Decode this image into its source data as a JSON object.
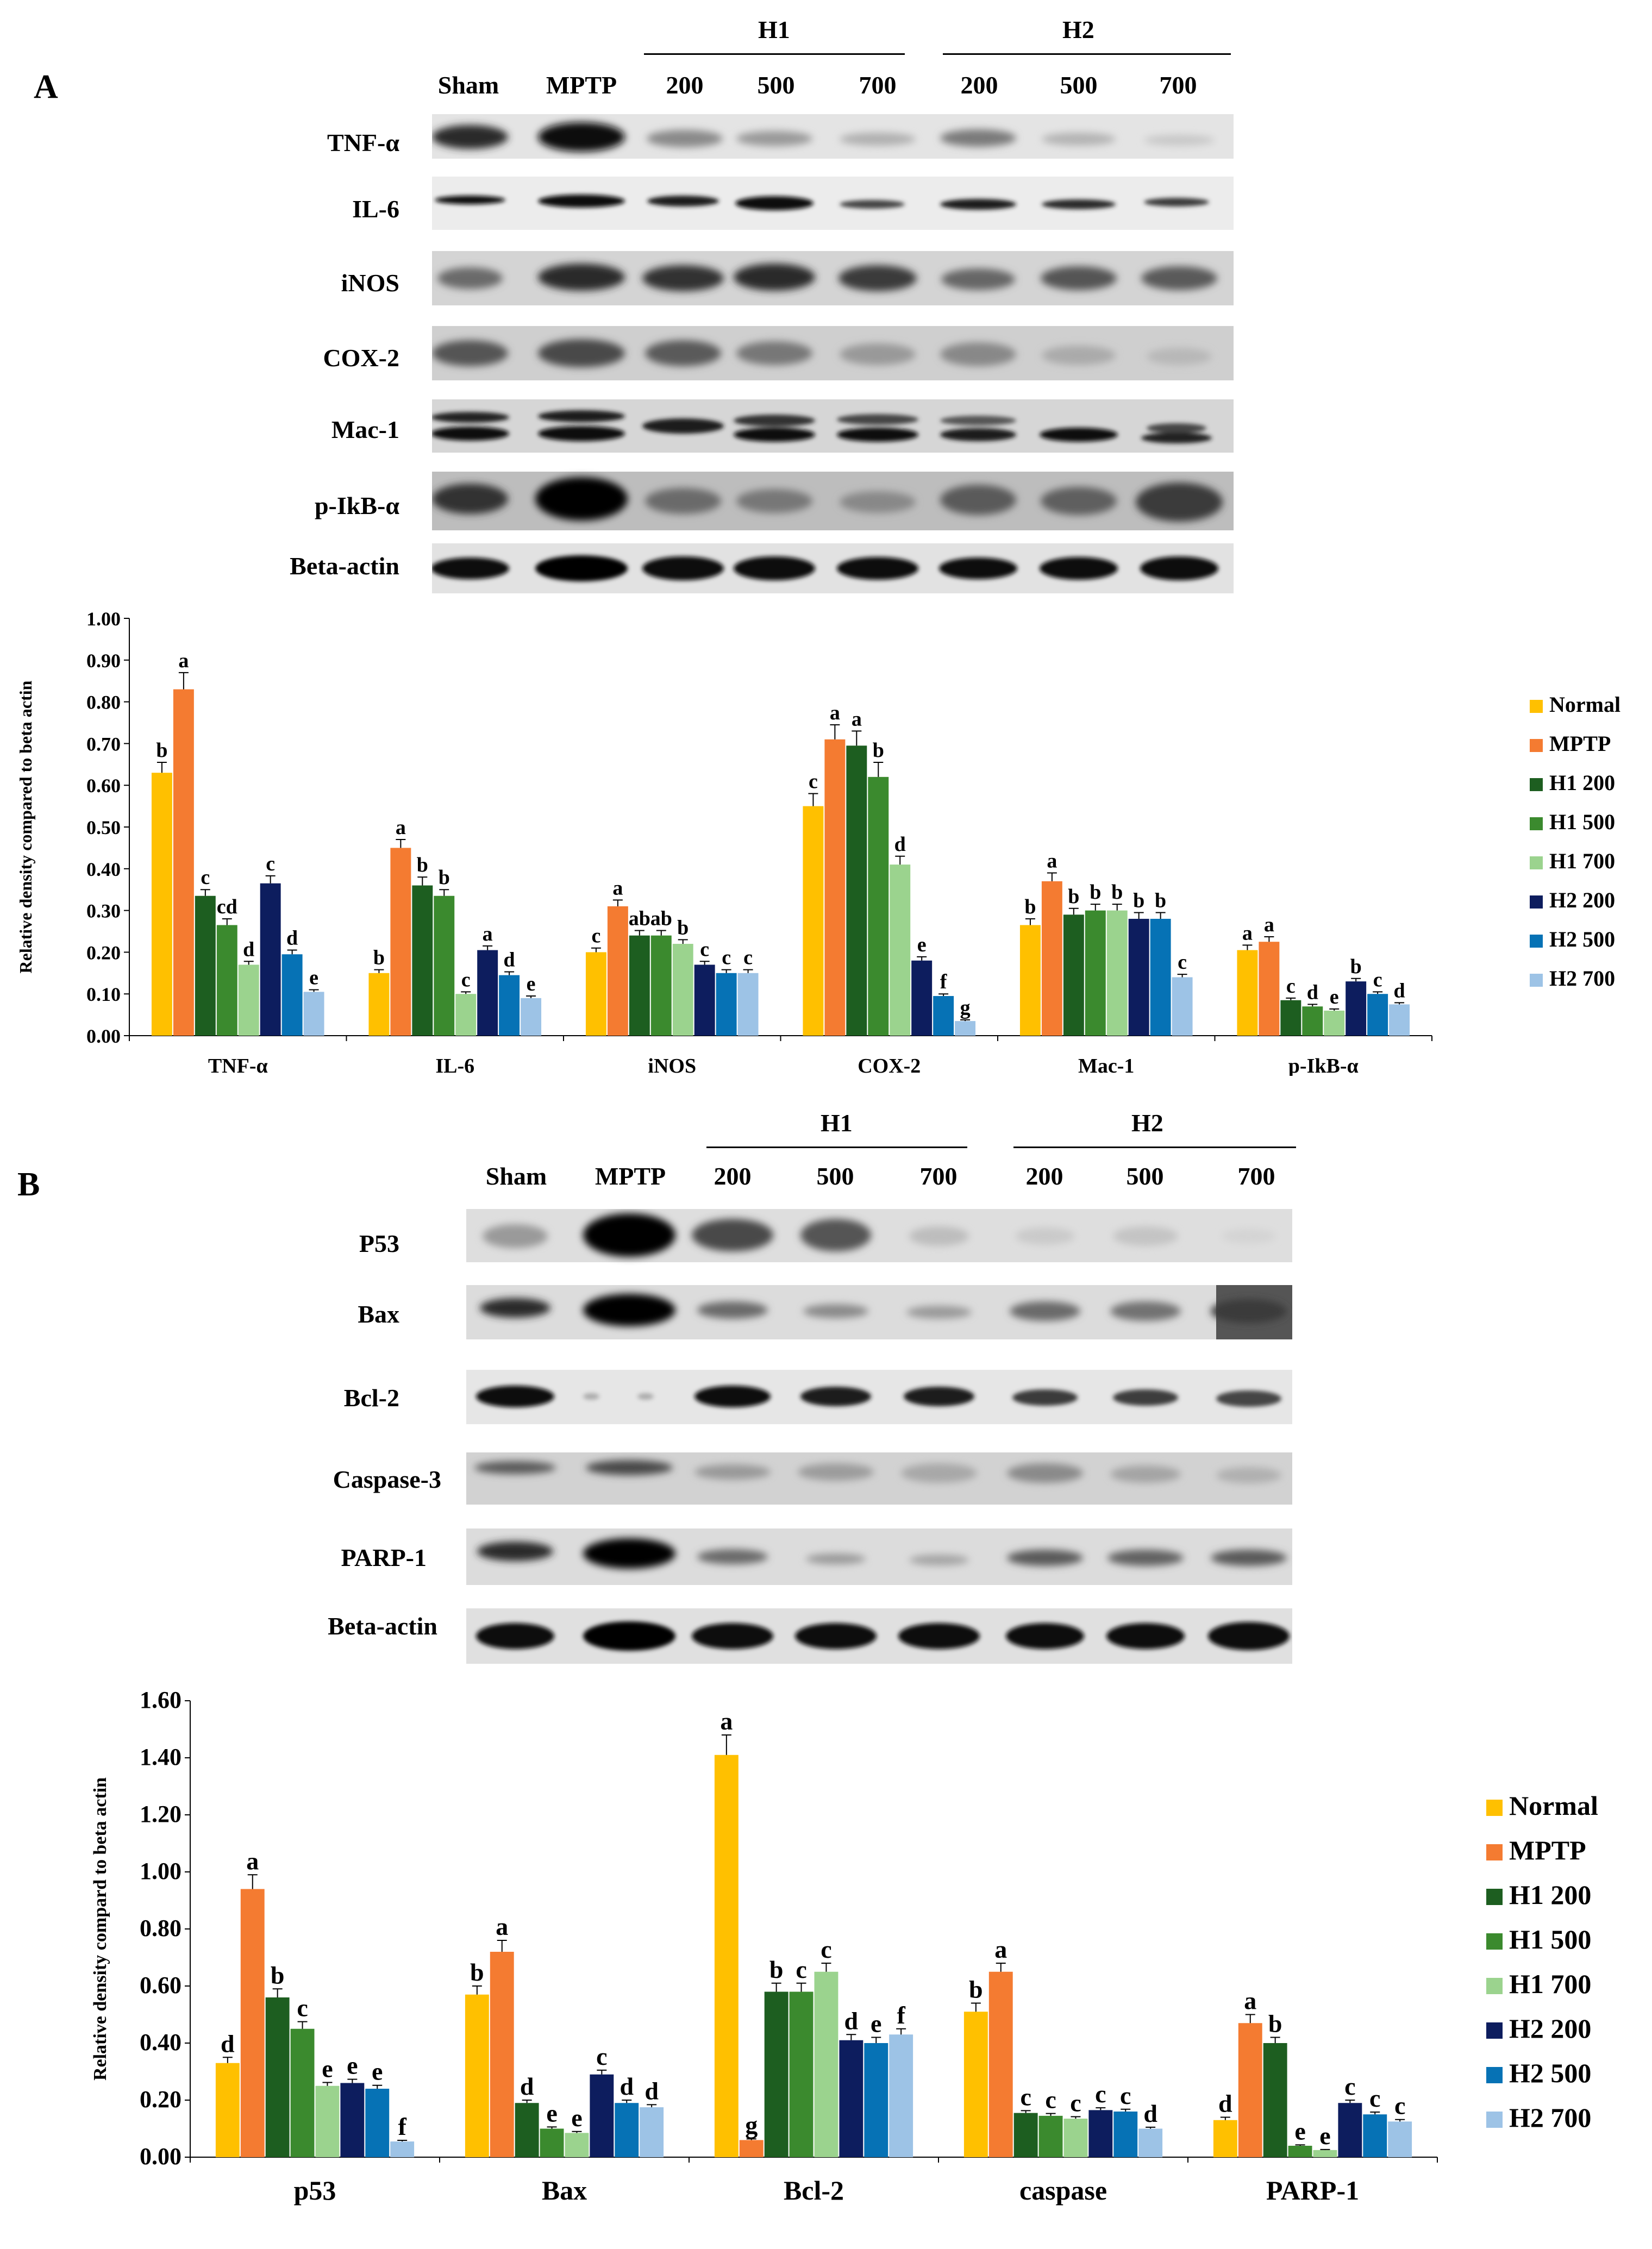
{
  "panelA": {
    "letter": "A",
    "group_labels": [
      "H1",
      "H2"
    ],
    "lane_labels": [
      "Sham",
      "MPTP",
      "200",
      "500",
      "700",
      "200",
      "500",
      "700"
    ],
    "proteins": [
      "TNF-α",
      "IL-6",
      "iNOS",
      "COX-2",
      "Mac-1",
      "p-IkB-α",
      "Beta-actin"
    ]
  },
  "panelB": {
    "letter": "B",
    "group_labels": [
      "H1",
      "H2"
    ],
    "lane_labels": [
      "Sham",
      "MPTP",
      "200",
      "500",
      "700",
      "200",
      "500",
      "700"
    ],
    "proteins": [
      "P53",
      "Bax",
      "Bcl-2",
      "Caspase-3",
      "PARP-1",
      "Beta-actin"
    ]
  },
  "chart_data": [
    {
      "type": "bar",
      "panel": "A",
      "ylabel": "Relative density compared to beta actin",
      "ylim": [
        0,
        1.0
      ],
      "ytick_step": 0.1,
      "ytick_decimals": 2,
      "categories": [
        "TNF-α",
        "IL-6",
        "iNOS",
        "COX-2",
        "Mac-1",
        "p-IkB-α"
      ],
      "legend_position": "right",
      "series": [
        {
          "name": "Normal",
          "color": "#FFC000",
          "values": [
            0.63,
            0.15,
            0.2,
            0.55,
            0.265,
            0.205
          ],
          "errors": [
            0.025,
            0.008,
            0.01,
            0.03,
            0.015,
            0.012
          ],
          "labels": [
            "b",
            "b",
            "c",
            "c",
            "b",
            "a"
          ]
        },
        {
          "name": "MPTP",
          "color": "#F47B31",
          "values": [
            0.83,
            0.45,
            0.31,
            0.71,
            0.37,
            0.225
          ],
          "errors": [
            0.04,
            0.02,
            0.015,
            0.035,
            0.02,
            0.012
          ],
          "labels": [
            "a",
            "a",
            "a",
            "a",
            "a",
            "a"
          ]
        },
        {
          "name": "H1 200",
          "color": "#1D5E20",
          "values": [
            0.335,
            0.36,
            0.24,
            0.695,
            0.29,
            0.085
          ],
          "errors": [
            0.015,
            0.02,
            0.012,
            0.035,
            0.015,
            0.005
          ],
          "labels": [
            "c",
            "b",
            "ab",
            "a",
            "b",
            "c"
          ]
        },
        {
          "name": "H1 500",
          "color": "#3B8A2E",
          "values": [
            0.265,
            0.335,
            0.24,
            0.62,
            0.3,
            0.07
          ],
          "errors": [
            0.015,
            0.015,
            0.012,
            0.035,
            0.015,
            0.005
          ],
          "labels": [
            "cd",
            "b",
            "ab",
            "b",
            "b",
            "d"
          ]
        },
        {
          "name": "H1 700",
          "color": "#9BD38E",
          "values": [
            0.17,
            0.1,
            0.22,
            0.41,
            0.3,
            0.06
          ],
          "errors": [
            0.008,
            0.005,
            0.01,
            0.02,
            0.015,
            0.004
          ],
          "labels": [
            "d",
            "c",
            "b",
            "d",
            "b",
            "e"
          ]
        },
        {
          "name": "H2 200",
          "color": "#0D1D5E",
          "values": [
            0.365,
            0.205,
            0.17,
            0.18,
            0.28,
            0.13
          ],
          "errors": [
            0.018,
            0.01,
            0.008,
            0.009,
            0.015,
            0.007
          ],
          "labels": [
            "c",
            "a",
            "c",
            "e",
            "b",
            "b"
          ]
        },
        {
          "name": "H2 500",
          "color": "#0672B5",
          "values": [
            0.195,
            0.145,
            0.15,
            0.095,
            0.28,
            0.1
          ],
          "errors": [
            0.01,
            0.008,
            0.008,
            0.005,
            0.015,
            0.005
          ],
          "labels": [
            "d",
            "d",
            "c",
            "f",
            "b",
            "c"
          ]
        },
        {
          "name": "H2 700",
          "color": "#9DC3E6",
          "values": [
            0.105,
            0.09,
            0.15,
            0.035,
            0.14,
            0.075
          ],
          "errors": [
            0.005,
            0.005,
            0.008,
            0.003,
            0.007,
            0.004
          ],
          "labels": [
            "e",
            "e",
            "c",
            "g",
            "c",
            "d"
          ]
        }
      ]
    },
    {
      "type": "bar",
      "panel": "B",
      "ylabel": "Relative density compard to beta actin",
      "ylim": [
        0,
        1.6
      ],
      "ytick_step": 0.2,
      "ytick_decimals": 2,
      "categories": [
        "p53",
        "Bax",
        "Bcl-2",
        "caspase",
        "PARP-1"
      ],
      "legend_position": "right",
      "series": [
        {
          "name": "Normal",
          "color": "#FFC000",
          "values": [
            0.33,
            0.57,
            1.41,
            0.51,
            0.13
          ],
          "errors": [
            0.02,
            0.03,
            0.07,
            0.03,
            0.01
          ],
          "labels": [
            "d",
            "b",
            "a",
            "b",
            "d"
          ]
        },
        {
          "name": "MPTP",
          "color": "#F47B31",
          "values": [
            0.94,
            0.72,
            0.06,
            0.65,
            0.47
          ],
          "errors": [
            0.05,
            0.04,
            0.004,
            0.03,
            0.03
          ],
          "labels": [
            "a",
            "a",
            "g",
            "a",
            "a"
          ]
        },
        {
          "name": "H1 200",
          "color": "#1D5E20",
          "values": [
            0.56,
            0.19,
            0.58,
            0.155,
            0.4
          ],
          "errors": [
            0.03,
            0.01,
            0.03,
            0.008,
            0.02
          ],
          "labels": [
            "b",
            "d",
            "b",
            "c",
            "b"
          ]
        },
        {
          "name": "H1 500",
          "color": "#3B8A2E",
          "values": [
            0.45,
            0.1,
            0.58,
            0.145,
            0.04
          ],
          "errors": [
            0.025,
            0.006,
            0.03,
            0.008,
            0.003
          ],
          "labels": [
            "c",
            "e",
            "c",
            "c",
            "e"
          ]
        },
        {
          "name": "H1 700",
          "color": "#9BD38E",
          "values": [
            0.25,
            0.085,
            0.65,
            0.135,
            0.025
          ],
          "errors": [
            0.012,
            0.005,
            0.03,
            0.007,
            0.002
          ],
          "labels": [
            "e",
            "e",
            "c",
            "c",
            "e"
          ]
        },
        {
          "name": "H2 200",
          "color": "#0D1D5E",
          "values": [
            0.26,
            0.29,
            0.41,
            0.165,
            0.19
          ],
          "errors": [
            0.013,
            0.015,
            0.02,
            0.008,
            0.01
          ],
          "labels": [
            "e",
            "c",
            "d",
            "c",
            "c"
          ]
        },
        {
          "name": "H2 500",
          "color": "#0672B5",
          "values": [
            0.24,
            0.19,
            0.4,
            0.16,
            0.15
          ],
          "errors": [
            0.012,
            0.01,
            0.02,
            0.008,
            0.008
          ],
          "labels": [
            "e",
            "d",
            "e",
            "c",
            "c"
          ]
        },
        {
          "name": "H2 700",
          "color": "#9DC3E6",
          "values": [
            0.055,
            0.175,
            0.43,
            0.1,
            0.125
          ],
          "errors": [
            0.004,
            0.009,
            0.02,
            0.005,
            0.007
          ],
          "labels": [
            "f",
            "d",
            "f",
            "d",
            "c"
          ]
        }
      ]
    }
  ]
}
